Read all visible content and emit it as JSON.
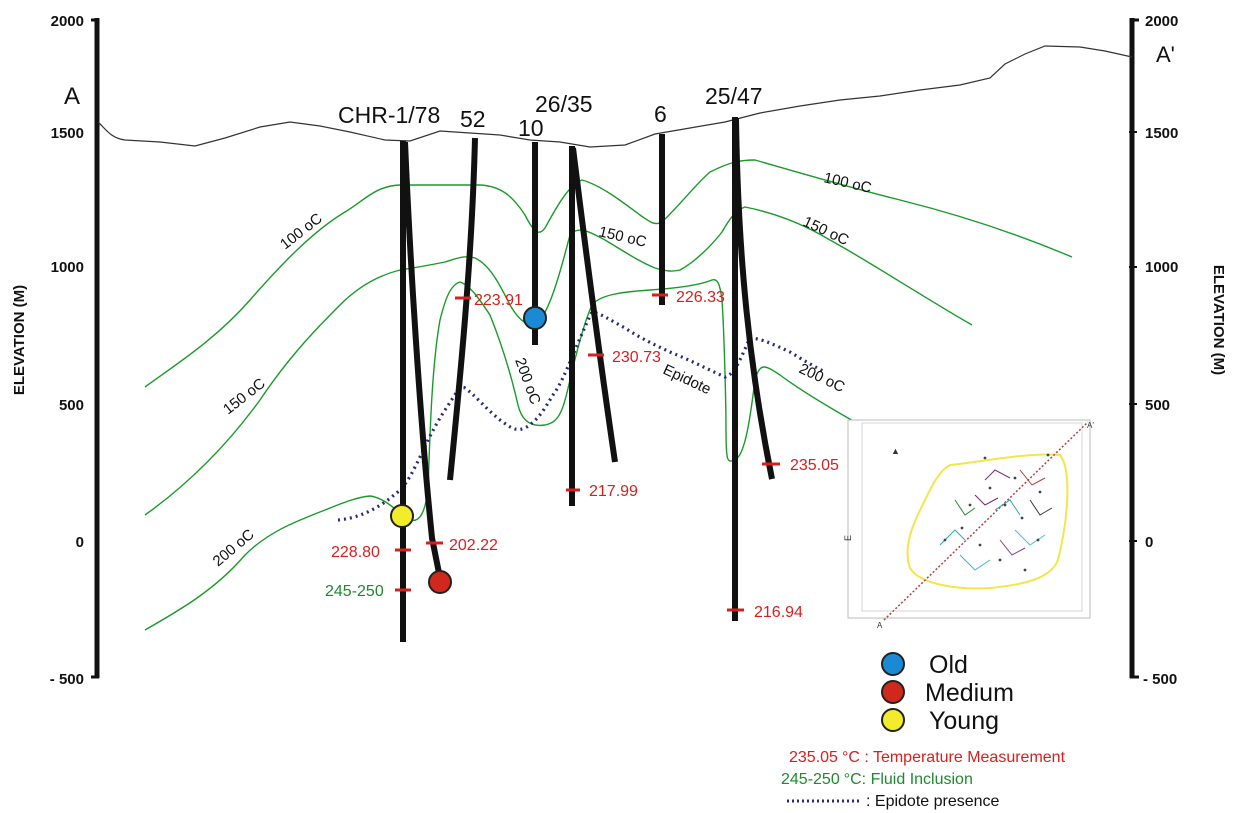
{
  "section_labels": {
    "start": "A",
    "end": "A'"
  },
  "axis": {
    "label_left": "ELEVATION (M)",
    "label_right": "ELEVATION (M)",
    "ticks_left": [
      "2000",
      "1500",
      "1000",
      "500",
      "0",
      "- 500"
    ],
    "ticks_right": [
      "2000",
      "1500",
      "1000",
      "500",
      "0",
      "- 500"
    ]
  },
  "wells": [
    {
      "name": "CHR-1/78"
    },
    {
      "name": "52"
    },
    {
      "name": "10"
    },
    {
      "name": "26/35"
    },
    {
      "name": "6"
    },
    {
      "name": "25/47"
    }
  ],
  "isotherm_labels": {
    "t100_left": "100 oC",
    "t100_right": "100 oC",
    "t150_left": "150 oC",
    "t150_mid": "150 oC",
    "t150_right": "150 oC",
    "t200_left": "200 oC",
    "t200_mid": "200 oC",
    "t200_right": "200 oC",
    "epidote": "Epidote"
  },
  "temperatures": [
    {
      "value": "223.91",
      "color": "#d62020"
    },
    {
      "value": "226.33",
      "color": "#d62020"
    },
    {
      "value": "230.73",
      "color": "#d62020"
    },
    {
      "value": "217.99",
      "color": "#d62020"
    },
    {
      "value": "235.05",
      "color": "#d62020"
    },
    {
      "value": "228.80",
      "color": "#d62020"
    },
    {
      "value": "202.22",
      "color": "#d62020"
    },
    {
      "value": "216.94",
      "color": "#d62020"
    },
    {
      "value": "245-250",
      "color": "#1e8a2e"
    }
  ],
  "legend": {
    "old": {
      "label": "Old",
      "color": "#1a8ad4"
    },
    "medium": {
      "label": "Medium",
      "color": "#d0281c"
    },
    "young": {
      "label": "Young",
      "color": "#f2ec2a"
    }
  },
  "notes": {
    "temp_value": "235.05",
    "temp_unit": "°C : Temperature Measurement",
    "fluid_value": "245-250",
    "fluid_unit": "°C: Fluid Inclusion",
    "epidote_text": ": Epidote presence"
  },
  "colors": {
    "temperature": "#d62020",
    "fluid_inclusion": "#1e8a2e",
    "isotherm": "#1a9a2a",
    "epidote": "#2a2a7a",
    "inset_outline": "#f2e64a"
  }
}
